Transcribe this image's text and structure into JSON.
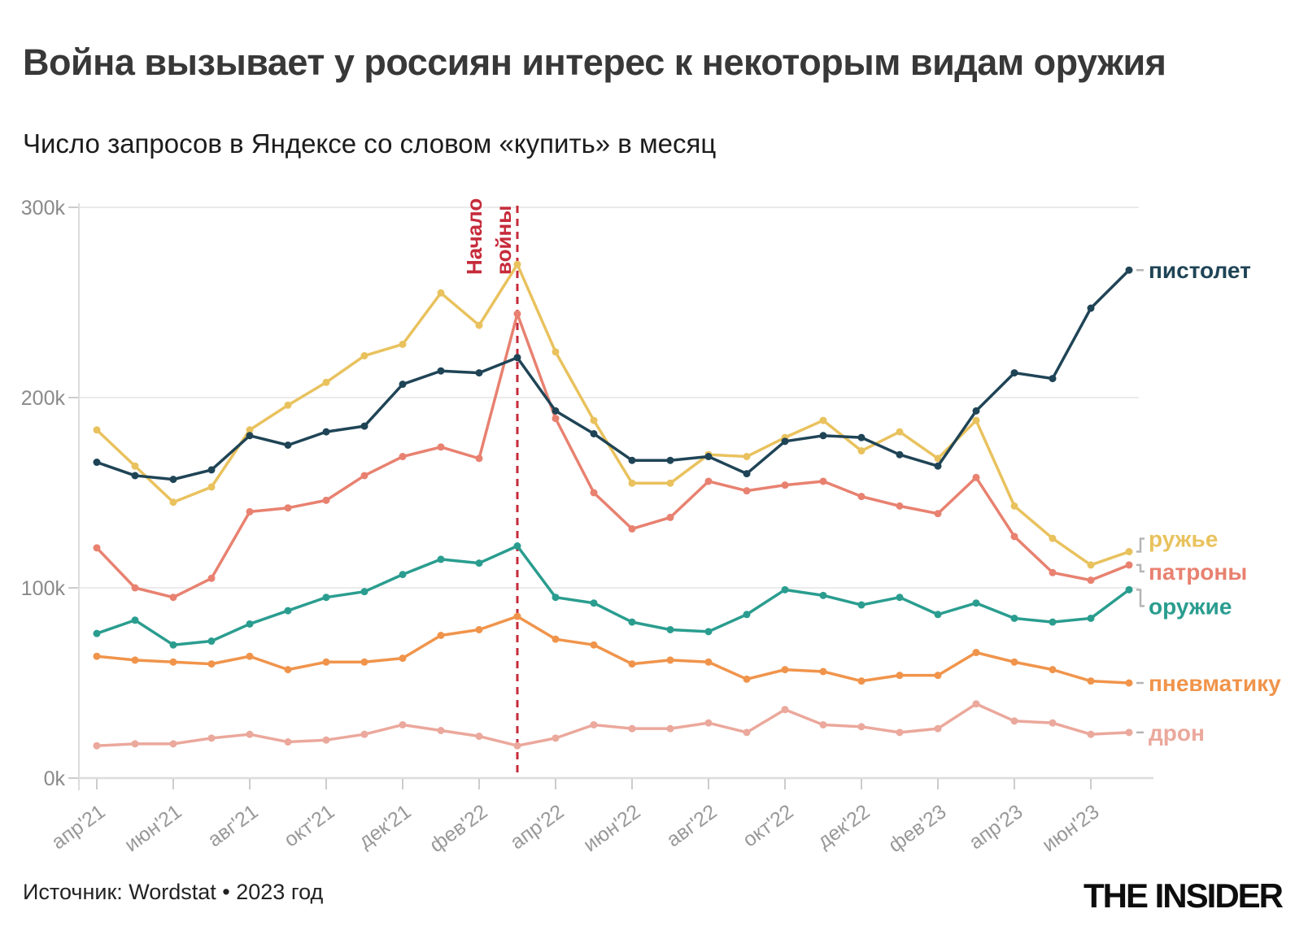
{
  "header": {
    "title": "Война вызывает у россиян интерес к некоторым видам оружия",
    "subtitle": "Число запросов в Яндексе со словом «купить» в месяц"
  },
  "footer": {
    "source": "Источник: Wordstat • 2023 год",
    "logo": "THE INSIDER"
  },
  "annotation": {
    "line1": "Начало",
    "line2": "войны",
    "month_index": 11,
    "month": "мар'22",
    "color": "#c62b3b"
  },
  "chart_data": {
    "type": "line",
    "title": "Число запросов в Яндексе со словом «купить» в месяц",
    "unit": "k",
    "ylim": [
      0,
      300
    ],
    "grid": "horizontal",
    "legend_position": "right-of-line-ends",
    "y_ticks": [
      {
        "label": "0k",
        "value": 0
      },
      {
        "label": "100k",
        "value": 100
      },
      {
        "label": "200k",
        "value": 200
      },
      {
        "label": "300k",
        "value": 300
      }
    ],
    "x_tick_every": 2,
    "months": [
      "апр'21",
      "май'21",
      "июн'21",
      "июл'21",
      "авг'21",
      "сен'21",
      "окт'21",
      "ноя'21",
      "дек'21",
      "янв'22",
      "фев'22",
      "мар'22",
      "апр'22",
      "май'22",
      "июн'22",
      "июл'22",
      "авг'22",
      "сен'22",
      "окт'22",
      "ноя'22",
      "дек'22",
      "янв'23",
      "фев'23",
      "мар'23",
      "апр'23",
      "май'23",
      "июн'23",
      "июл'23"
    ],
    "series": [
      {
        "name": "пистолет",
        "color": "#1f4456",
        "label_y_offset": 0,
        "values": [
          166,
          159,
          157,
          162,
          180,
          175,
          182,
          185,
          207,
          214,
          213,
          221,
          193,
          181,
          167,
          167,
          169,
          160,
          177,
          180,
          179,
          170,
          164,
          193,
          213,
          210,
          247,
          267
        ]
      },
      {
        "name": "ружье",
        "color": "#e9c25e",
        "label_y_offset": -16,
        "values": [
          183,
          164,
          145,
          153,
          183,
          196,
          208,
          222,
          228,
          255,
          238,
          270,
          224,
          188,
          155,
          155,
          170,
          169,
          179,
          188,
          172,
          182,
          168,
          188,
          143,
          126,
          112,
          119
        ]
      },
      {
        "name": "патроны",
        "color": "#e88170",
        "label_y_offset": 8,
        "values": [
          121,
          100,
          95,
          105,
          140,
          142,
          146,
          159,
          169,
          174,
          168,
          244,
          189,
          150,
          131,
          137,
          156,
          151,
          154,
          156,
          148,
          143,
          139,
          158,
          127,
          108,
          104,
          112
        ]
      },
      {
        "name": "оружие",
        "color": "#2a9d8f",
        "label_y_offset": 20,
        "values": [
          76,
          83,
          70,
          72,
          81,
          88,
          95,
          98,
          107,
          115,
          113,
          122,
          95,
          92,
          82,
          78,
          77,
          86,
          99,
          96,
          91,
          95,
          86,
          92,
          84,
          82,
          84,
          99
        ]
      },
      {
        "name": "пневматику",
        "color": "#f0944b",
        "label_y_offset": 0,
        "values": [
          64,
          62,
          61,
          60,
          64,
          57,
          61,
          61,
          63,
          75,
          78,
          85,
          73,
          70,
          60,
          62,
          61,
          52,
          57,
          56,
          51,
          54,
          54,
          66,
          61,
          57,
          51,
          50
        ]
      },
      {
        "name": "дрон",
        "color": "#eba89c",
        "label_y_offset": 0,
        "values": [
          17,
          18,
          18,
          21,
          23,
          19,
          20,
          23,
          28,
          25,
          22,
          17,
          21,
          28,
          26,
          26,
          29,
          24,
          36,
          28,
          27,
          24,
          26,
          39,
          30,
          29,
          23,
          24
        ]
      }
    ]
  }
}
